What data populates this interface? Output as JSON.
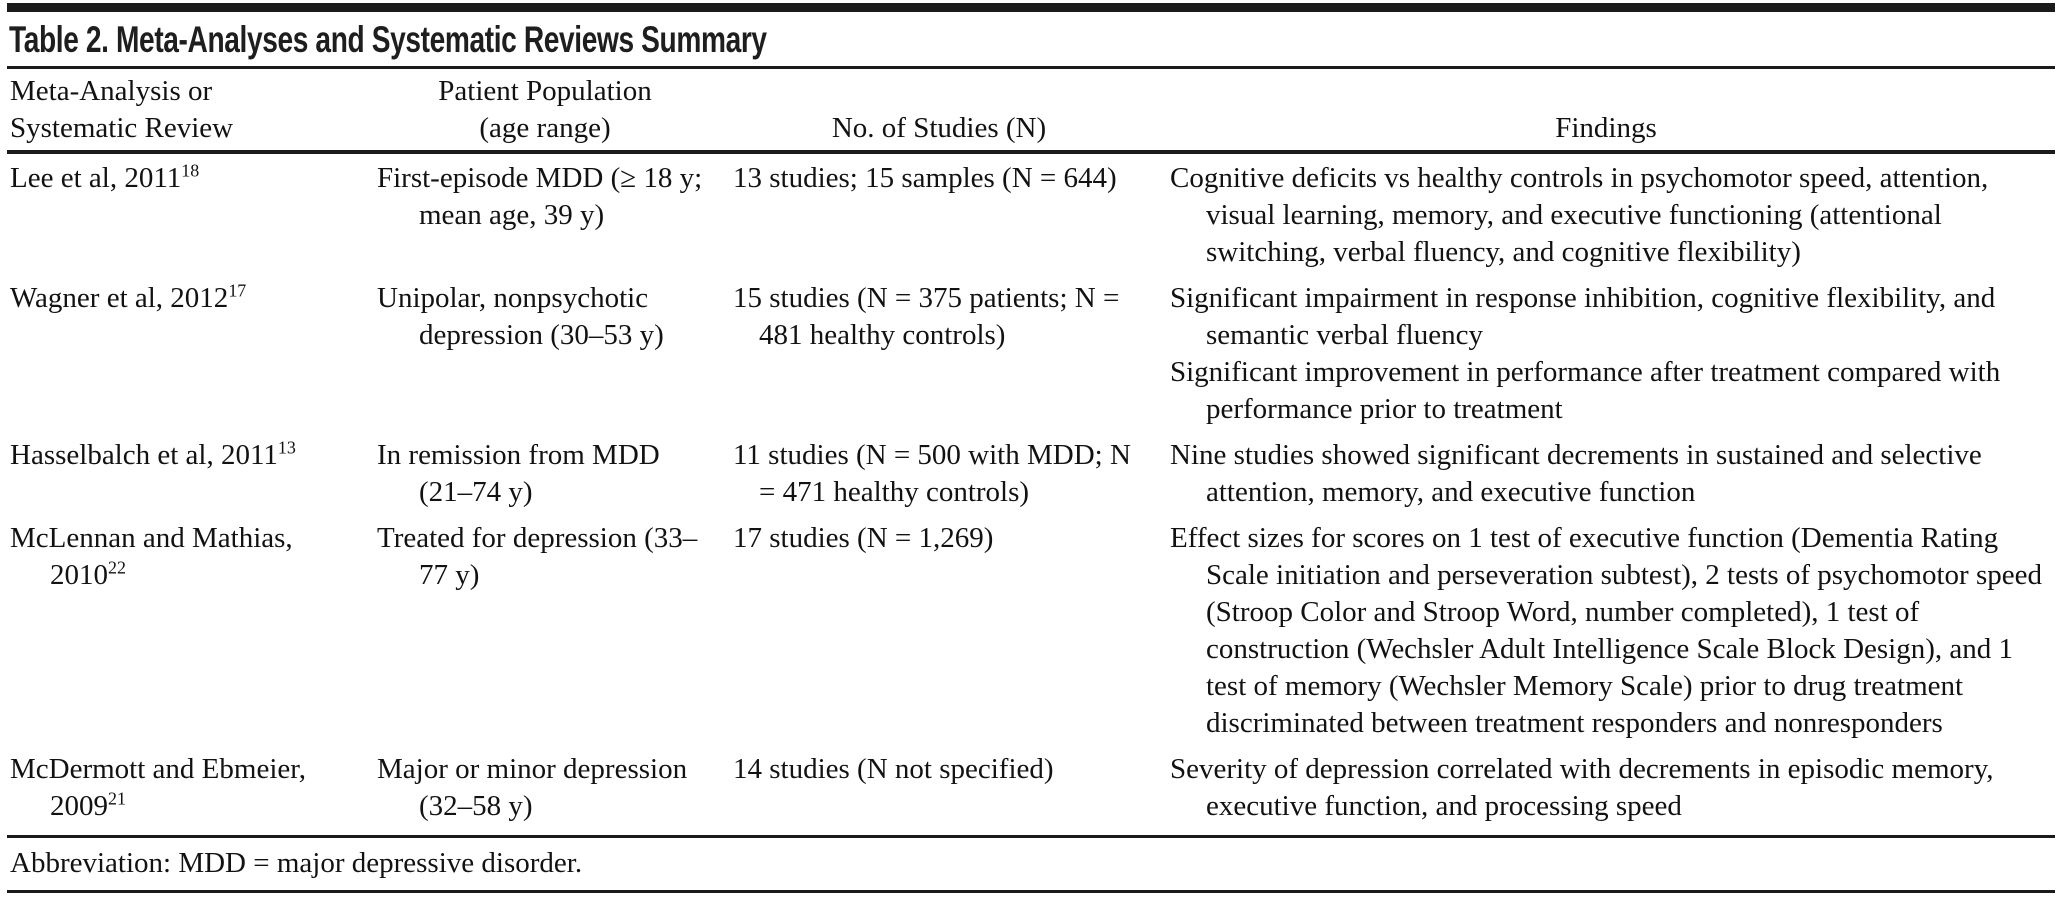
{
  "title": "Table 2. Meta-Analyses and Systematic Reviews Summary",
  "table": {
    "columns": {
      "study": {
        "line1": "Meta-Analysis or",
        "line2": "Systematic Review"
      },
      "population": {
        "line1": "Patient Population",
        "line2": "(age range)"
      },
      "studies_n": {
        "line1": "",
        "line2": "No. of Studies (N)"
      },
      "findings": {
        "line1": "",
        "line2": "Findings"
      }
    },
    "rows": [
      {
        "study": {
          "text": "Lee et al, 2011",
          "ref": "18"
        },
        "population": "First-episode MDD (≥ 18 y; mean age, 39 y)",
        "no_of_studies": "13 studies; 15 samples (N = 644)",
        "findings": [
          "Cognitive deficits vs healthy controls in psychomotor speed, attention, visual learning, memory, and executive functioning (attentional switching, verbal fluency, and cognitive flexibility)"
        ]
      },
      {
        "study": {
          "text": "Wagner et al, 2012",
          "ref": "17"
        },
        "population": "Unipolar, nonpsychotic depression (30–53 y)",
        "no_of_studies": "15 studies (N = 375 patients; N = 481 healthy controls)",
        "findings": [
          "Significant impairment in response inhibition, cognitive flexibility, and semantic verbal fluency",
          "Significant improvement in performance after treatment compared with performance prior to treatment"
        ]
      },
      {
        "study": {
          "text": "Hasselbalch et al, 2011",
          "ref": "13"
        },
        "population": "In remission from MDD (21–74 y)",
        "no_of_studies": "11 studies (N = 500 with MDD; N = 471 healthy controls)",
        "findings": [
          "Nine studies showed significant decrements in sustained and selective attention, memory, and executive function"
        ]
      },
      {
        "study": {
          "text": "McLennan and Mathias, 2010",
          "ref": "22"
        },
        "population": "Treated for depression (33–77 y)",
        "no_of_studies": "17 studies (N = 1,269)",
        "findings": [
          "Effect sizes for scores on 1 test of executive function (Dementia Rating Scale initiation and perseveration subtest), 2 tests of psychomotor speed (Stroop Color and Stroop Word, number completed), 1 test of construction (Wechsler Adult Intelligence Scale Block Design), and 1 test of memory (Wechsler Memory Scale) prior to drug treatment discriminated between treatment responders and nonresponders"
        ]
      },
      {
        "study": {
          "text": "McDermott and Ebmeier, 2009",
          "ref": "21"
        },
        "population": "Major or minor depression (32–58 y)",
        "no_of_studies": "14 studies (N not specified)",
        "findings": [
          "Severity of depression correlated with decrements in episodic memory, executive function, and processing speed"
        ]
      }
    ]
  },
  "footnote": "Abbreviation: MDD = major depressive disorder.",
  "colors": {
    "rule": "#1b1b1b",
    "text": "#121212",
    "background": "#ffffff"
  }
}
